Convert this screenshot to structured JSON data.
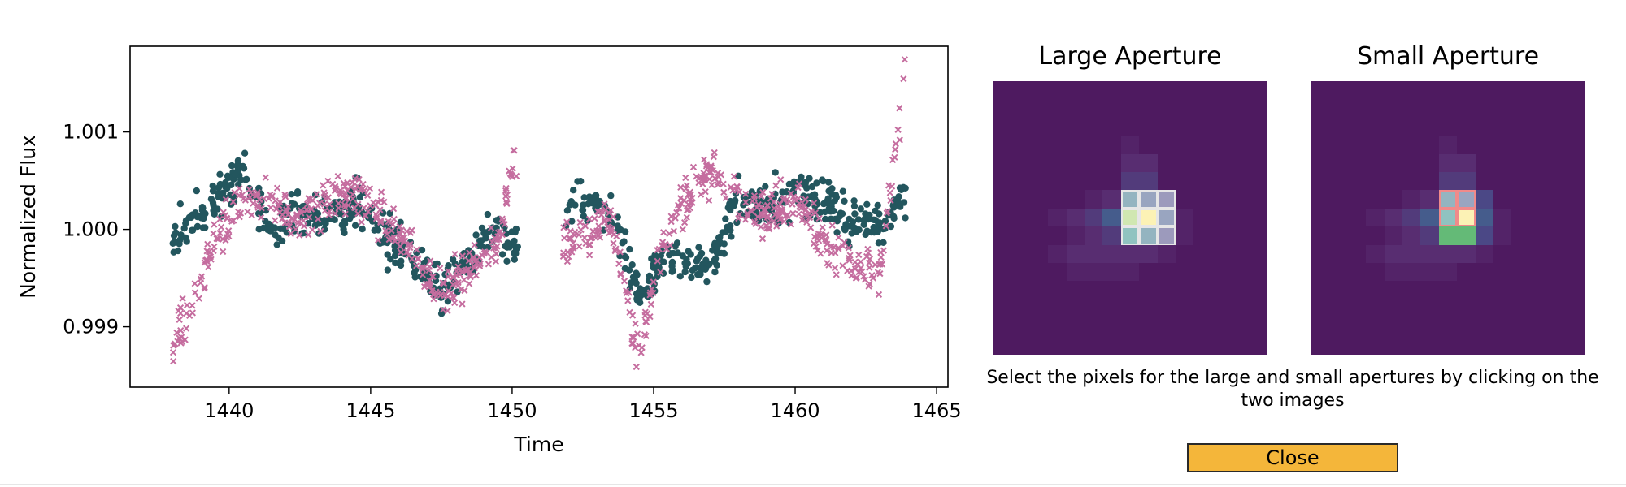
{
  "chart_data": {
    "type": "scatter",
    "xlabel": "Time",
    "ylabel": "Normalized Flux",
    "xlim": [
      1436.5,
      1465.4
    ],
    "ylim": [
      0.99838,
      1.00188
    ],
    "xticks": [
      1440,
      1445,
      1450,
      1455,
      1460,
      1465
    ],
    "xtick_labels": [
      "1440",
      "1445",
      "1450",
      "1455",
      "1460",
      "1465"
    ],
    "yticks": [
      0.999,
      1.0,
      1.001
    ],
    "ytick_labels": [
      "0.999",
      "1.000",
      "1.001"
    ],
    "grid": false,
    "series": [
      {
        "marker": "circle",
        "color": "#23565e",
        "approx_points": [
          [
            1438.0,
            0.9998
          ],
          [
            1438.5,
            1.0001
          ],
          [
            1439.5,
            1.0003
          ],
          [
            1440.5,
            1.0006
          ],
          [
            1441.5,
            1.0
          ],
          [
            1442.5,
            1.0002
          ],
          [
            1443.5,
            1.0001
          ],
          [
            1444.5,
            1.0003
          ],
          [
            1445.5,
            0.9999
          ],
          [
            1446.5,
            0.9997
          ],
          [
            1447.5,
            0.9994
          ],
          [
            1448.5,
            0.9997
          ],
          [
            1449.5,
            1.0001
          ],
          [
            1450.0,
            0.9998
          ],
          [
            1451.8,
            1.0001
          ],
          [
            1452.5,
            1.0003
          ],
          [
            1453.5,
            1.0002
          ],
          [
            1454.5,
            0.9993
          ],
          [
            1455.2,
            0.9996
          ],
          [
            1456.0,
            0.9997
          ],
          [
            1457.0,
            0.9996
          ],
          [
            1458.0,
            1.0003
          ],
          [
            1459.0,
            1.0002
          ],
          [
            1460.0,
            1.0004
          ],
          [
            1461.0,
            1.0003
          ],
          [
            1462.0,
            1.0001
          ],
          [
            1463.0,
            1.0
          ],
          [
            1463.8,
            1.0003
          ]
        ]
      },
      {
        "marker": "x",
        "color": "#c56d9f",
        "approx_points": [
          [
            1438.0,
            0.9988
          ],
          [
            1438.5,
            0.9991
          ],
          [
            1439.5,
            0.9999
          ],
          [
            1440.5,
            1.0003
          ],
          [
            1441.5,
            1.0003
          ],
          [
            1442.5,
            1.0001
          ],
          [
            1443.5,
            1.0003
          ],
          [
            1444.5,
            1.0004
          ],
          [
            1445.5,
            1.0001
          ],
          [
            1446.5,
            0.9998
          ],
          [
            1447.5,
            0.9993
          ],
          [
            1448.5,
            0.9996
          ],
          [
            1449.5,
            0.9998
          ],
          [
            1450.0,
            1.0007
          ],
          [
            1451.8,
            0.9998
          ],
          [
            1452.5,
            1.0
          ],
          [
            1453.5,
            1.0001
          ],
          [
            1454.5,
            0.9987
          ],
          [
            1455.2,
            0.9997
          ],
          [
            1456.0,
            1.0002
          ],
          [
            1457.0,
            1.0006
          ],
          [
            1458.0,
            1.0003
          ],
          [
            1459.0,
            1.0001
          ],
          [
            1460.0,
            1.0003
          ],
          [
            1461.0,
            0.9999
          ],
          [
            1462.0,
            0.9996
          ],
          [
            1463.0,
            0.9996
          ],
          [
            1463.9,
            1.0016
          ]
        ]
      }
    ]
  },
  "apertures": {
    "large": {
      "title": "Large Aperture",
      "pixel_grid": [
        [
          0,
          0,
          0,
          0,
          0,
          0,
          0,
          0,
          0,
          0,
          0,
          0,
          0,
          0,
          0
        ],
        [
          0,
          0,
          0,
          0,
          0,
          0,
          0,
          0,
          0,
          0,
          0,
          0,
          0,
          0,
          0
        ],
        [
          0,
          0,
          0,
          0,
          0,
          0,
          0,
          0,
          0,
          0,
          0,
          0,
          0,
          0,
          0
        ],
        [
          0,
          0,
          0,
          0,
          0,
          0,
          0,
          1,
          0,
          0,
          0,
          0,
          0,
          0,
          0
        ],
        [
          0,
          0,
          0,
          0,
          0,
          0,
          0,
          2,
          2,
          0,
          0,
          0,
          0,
          0,
          0
        ],
        [
          0,
          0,
          0,
          0,
          0,
          0,
          0,
          3,
          3,
          0,
          0,
          0,
          0,
          0,
          0
        ],
        [
          0,
          0,
          0,
          0,
          0,
          1,
          2,
          6,
          5,
          4,
          0,
          0,
          0,
          0,
          0
        ],
        [
          0,
          0,
          0,
          1,
          2,
          3,
          5,
          11,
          13,
          5,
          1,
          0,
          0,
          0,
          0
        ],
        [
          0,
          0,
          0,
          0,
          1,
          2,
          3,
          7,
          6,
          4,
          1,
          0,
          0,
          0,
          0
        ],
        [
          0,
          0,
          0,
          1,
          2,
          2,
          2,
          2,
          2,
          1,
          0,
          0,
          0,
          0,
          0
        ],
        [
          0,
          0,
          0,
          0,
          1,
          1,
          1,
          1,
          0,
          0,
          0,
          0,
          0,
          0,
          0
        ],
        [
          0,
          0,
          0,
          0,
          0,
          0,
          0,
          0,
          0,
          0,
          0,
          0,
          0,
          0,
          0
        ],
        [
          0,
          0,
          0,
          0,
          0,
          0,
          0,
          0,
          0,
          0,
          0,
          0,
          0,
          0,
          0
        ],
        [
          0,
          0,
          0,
          0,
          0,
          0,
          0,
          0,
          0,
          0,
          0,
          0,
          0,
          0,
          0
        ],
        [
          0,
          0,
          0,
          0,
          0,
          0,
          0,
          0,
          0,
          0,
          0,
          0,
          0,
          0,
          0
        ]
      ],
      "selected_pixels": [
        [
          6,
          7
        ],
        [
          6,
          8
        ],
        [
          6,
          9
        ],
        [
          7,
          7
        ],
        [
          7,
          8
        ],
        [
          7,
          9
        ],
        [
          8,
          7
        ],
        [
          8,
          8
        ],
        [
          8,
          9
        ]
      ],
      "selection_color": "#e6e6e6"
    },
    "small": {
      "title": "Small Aperture",
      "pixel_grid": [
        [
          0,
          0,
          0,
          0,
          0,
          0,
          0,
          0,
          0,
          0,
          0,
          0,
          0,
          0,
          0
        ],
        [
          0,
          0,
          0,
          0,
          0,
          0,
          0,
          0,
          0,
          0,
          0,
          0,
          0,
          0,
          0
        ],
        [
          0,
          0,
          0,
          0,
          0,
          0,
          0,
          0,
          0,
          0,
          0,
          0,
          0,
          0,
          0
        ],
        [
          0,
          0,
          0,
          0,
          0,
          0,
          0,
          1,
          0,
          0,
          0,
          0,
          0,
          0,
          0
        ],
        [
          0,
          0,
          0,
          0,
          0,
          0,
          0,
          2,
          2,
          0,
          0,
          0,
          0,
          0,
          0
        ],
        [
          0,
          0,
          0,
          0,
          0,
          0,
          0,
          3,
          3,
          0,
          0,
          0,
          0,
          0,
          0
        ],
        [
          0,
          0,
          0,
          0,
          0,
          1,
          2,
          6,
          5,
          4,
          0,
          0,
          0,
          0,
          0
        ],
        [
          0,
          0,
          0,
          1,
          2,
          3,
          5,
          7,
          13,
          5,
          1,
          0,
          0,
          0,
          0
        ],
        [
          0,
          0,
          0,
          0,
          1,
          2,
          3,
          9,
          9,
          4,
          1,
          0,
          0,
          0,
          0
        ],
        [
          0,
          0,
          0,
          1,
          2,
          2,
          2,
          2,
          2,
          1,
          0,
          0,
          0,
          0,
          0
        ],
        [
          0,
          0,
          0,
          0,
          1,
          1,
          1,
          1,
          0,
          0,
          0,
          0,
          0,
          0,
          0
        ],
        [
          0,
          0,
          0,
          0,
          0,
          0,
          0,
          0,
          0,
          0,
          0,
          0,
          0,
          0,
          0
        ],
        [
          0,
          0,
          0,
          0,
          0,
          0,
          0,
          0,
          0,
          0,
          0,
          0,
          0,
          0,
          0
        ],
        [
          0,
          0,
          0,
          0,
          0,
          0,
          0,
          0,
          0,
          0,
          0,
          0,
          0,
          0,
          0
        ],
        [
          0,
          0,
          0,
          0,
          0,
          0,
          0,
          0,
          0,
          0,
          0,
          0,
          0,
          0,
          0
        ]
      ],
      "selected_pixels": [
        [
          6,
          7
        ],
        [
          6,
          8
        ],
        [
          7,
          7
        ],
        [
          7,
          8
        ]
      ],
      "selection_color": "#f08a8a"
    }
  },
  "instructions": "Select the pixels for the large and small apertures by clicking on the two images",
  "close_label": "Close",
  "colors": {
    "series_dark": "#23565e",
    "series_pink": "#c56d9f",
    "button": "#f4b63a"
  }
}
